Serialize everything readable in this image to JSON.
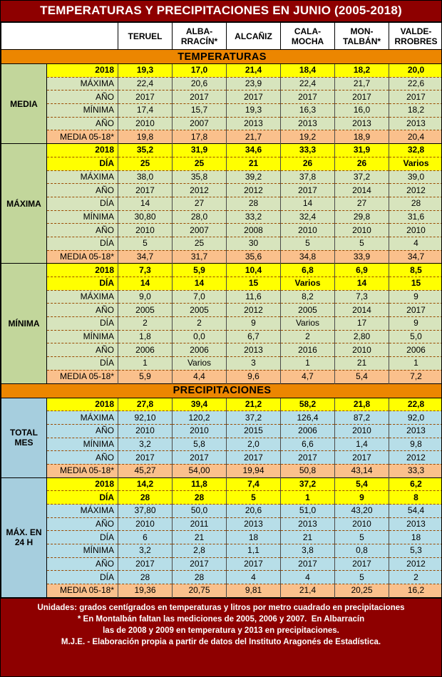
{
  "title": "TEMPERATURAS Y PRECIPITACIONES EN JUNIO (2005-2018)",
  "columns": [
    "TERUEL",
    "ALBA-\nRRACÍN*",
    "ALCAÑIZ",
    "CALA-\nMOCHA",
    "MON-\nTALBÁN*",
    "VALDE-\nRROBRES"
  ],
  "colors": {
    "maroon": "#8E0000",
    "orange": "#EC8600",
    "temp_row": "#D7E4BD",
    "temp_label": "#C2D69B",
    "precip_row": "#B7DEE8",
    "precip_label": "#A6CEDE",
    "year_row": "#FFFF00",
    "media_row": "#FAC08C",
    "hl_max": "#00C24D",
    "hl_min": "#F86E6E"
  },
  "sections": [
    {
      "header": "TEMPERATURAS",
      "kind": "temp",
      "groups": [
        {
          "label": "MEDIA",
          "rows": [
            {
              "label": "2018",
              "type": "year",
              "values": [
                "19,3",
                "17,0",
                "21,4",
                "18,4",
                "18,2",
                "20,0"
              ]
            },
            {
              "label": "MÁXIMA",
              "type": "normal",
              "values": [
                "22,4",
                "20,6",
                "23,9",
                "22,4",
                "21,7",
                "22,6"
              ],
              "hl": {
                "2": "max"
              }
            },
            {
              "label": "AÑO",
              "type": "normal",
              "values": [
                "2017",
                "2017",
                "2017",
                "2017",
                "2017",
                "2017"
              ]
            },
            {
              "label": "MÍNIMA",
              "type": "normal",
              "values": [
                "17,4",
                "15,7",
                "19,3",
                "16,3",
                "16,0",
                "18,2"
              ],
              "hl": {
                "1": "min"
              }
            },
            {
              "label": "AÑO",
              "type": "normal",
              "values": [
                "2010",
                "2007",
                "2013",
                "2013",
                "2013",
                "2013"
              ]
            },
            {
              "label": "MEDIA 05-18*",
              "type": "media",
              "values": [
                "19,8",
                "17,8",
                "21,7",
                "19,2",
                "18,9",
                "20,4"
              ]
            }
          ]
        },
        {
          "label": "MÁXIMA",
          "rows": [
            {
              "label": "2018",
              "type": "year",
              "values": [
                "35,2",
                "31,9",
                "34,6",
                "33,3",
                "31,9",
                "32,8"
              ]
            },
            {
              "label": "DÍA",
              "type": "year",
              "values": [
                "25",
                "25",
                "21",
                "26",
                "26",
                "Varios"
              ]
            },
            {
              "label": "MÁXIMA",
              "type": "normal",
              "values": [
                "38,0",
                "35,8",
                "39,2",
                "37,8",
                "37,2",
                "39,0"
              ],
              "hl": {
                "2": "max"
              }
            },
            {
              "label": "AÑO",
              "type": "normal",
              "values": [
                "2017",
                "2012",
                "2012",
                "2017",
                "2014",
                "2012"
              ]
            },
            {
              "label": "DÍA",
              "type": "normal",
              "values": [
                "14",
                "27",
                "28",
                "14",
                "27",
                "28"
              ]
            },
            {
              "label": "MÍNIMA",
              "type": "normal",
              "values": [
                "30,80",
                "28,0",
                "33,2",
                "32,4",
                "29,8",
                "31,6"
              ],
              "hl": {
                "1": "min"
              }
            },
            {
              "label": "AÑO",
              "type": "normal",
              "values": [
                "2010",
                "2007",
                "2008",
                "2010",
                "2010",
                "2010"
              ]
            },
            {
              "label": "DÍA",
              "type": "normal",
              "values": [
                "5",
                "25",
                "30",
                "5",
                "5",
                "4"
              ]
            },
            {
              "label": "MEDIA 05-18*",
              "type": "media",
              "values": [
                "34,7",
                "31,7",
                "35,6",
                "34,8",
                "33,9",
                "34,7"
              ]
            }
          ]
        },
        {
          "label": "MÍNIMA",
          "rows": [
            {
              "label": "2018",
              "type": "year",
              "values": [
                "7,3",
                "5,9",
                "10,4",
                "6,8",
                "6,9",
                "8,5"
              ]
            },
            {
              "label": "DÍA",
              "type": "year",
              "values": [
                "14",
                "14",
                "15",
                "Varios",
                "14",
                "15"
              ]
            },
            {
              "label": "MÁXIMA",
              "type": "normal",
              "values": [
                "9,0",
                "7,0",
                "11,6",
                "8,2",
                "7,3",
                "9"
              ],
              "hl": {
                "2": "max"
              }
            },
            {
              "label": "AÑO",
              "type": "normal",
              "values": [
                "2005",
                "2005",
                "2012",
                "2005",
                "2014",
                "2017"
              ]
            },
            {
              "label": "DÍA",
              "type": "normal",
              "values": [
                "2",
                "2",
                "9",
                "Varios",
                "17",
                "9"
              ]
            },
            {
              "label": "MÍNIMA",
              "type": "normal",
              "values": [
                "1,8",
                "0,0",
                "6,7",
                "2",
                "2,80",
                "5,0"
              ],
              "hl": {
                "1": "min"
              }
            },
            {
              "label": "AÑO",
              "type": "normal",
              "values": [
                "2006",
                "2006",
                "2013",
                "2016",
                "2010",
                "2006"
              ]
            },
            {
              "label": "DÍA",
              "type": "normal",
              "values": [
                "1",
                "Varios",
                "3",
                "1",
                "21",
                "1"
              ]
            },
            {
              "label": "MEDIA 05-18*",
              "type": "media",
              "values": [
                "5,9",
                "4,4",
                "9,6",
                "4,7",
                "5,4",
                "7,2"
              ]
            }
          ]
        }
      ]
    },
    {
      "header": "PRECIPITACIONES",
      "kind": "precip",
      "groups": [
        {
          "label": "TOTAL\nMES",
          "rows": [
            {
              "label": "2018",
              "type": "year",
              "values": [
                "27,8",
                "39,4",
                "21,2",
                "58,2",
                "21,8",
                "22,8"
              ]
            },
            {
              "label": "MÁXIMA",
              "type": "normal",
              "values": [
                "92,10",
                "120,2",
                "37,2",
                "126,4",
                "87,2",
                "92,0"
              ],
              "hl": {
                "3": "max"
              }
            },
            {
              "label": "AÑO",
              "type": "normal",
              "values": [
                "2010",
                "2010",
                "2015",
                "2006",
                "2010",
                "2013"
              ]
            },
            {
              "label": "MÍNIMA",
              "type": "normal",
              "values": [
                "3,2",
                "5,8",
                "2,0",
                "6,6",
                "1,4",
                "9,8"
              ],
              "hl": {
                "4": "min"
              }
            },
            {
              "label": "AÑO",
              "type": "normal",
              "values": [
                "2017",
                "2017",
                "2017",
                "2017",
                "2017",
                "2012"
              ]
            },
            {
              "label": "MEDIA 05-18*",
              "type": "media",
              "values": [
                "45,27",
                "54,00",
                "19,94",
                "50,8",
                "43,14",
                "33,3"
              ]
            }
          ]
        },
        {
          "label": "MÁX. EN\n24 H",
          "rows": [
            {
              "label": "2018",
              "type": "year",
              "values": [
                "14,2",
                "11,8",
                "7,4",
                "37,2",
                "5,4",
                "6,2"
              ]
            },
            {
              "label": "DÍA",
              "type": "year",
              "values": [
                "28",
                "28",
                "5",
                "1",
                "9",
                "8"
              ]
            },
            {
              "label": "MÁXIMA",
              "type": "normal",
              "values": [
                "37,80",
                "50,0",
                "20,6",
                "51,0",
                "43,20",
                "54,4"
              ],
              "hl": {
                "5": "max"
              }
            },
            {
              "label": "AÑO",
              "type": "normal",
              "values": [
                "2010",
                "2011",
                "2013",
                "2013",
                "2010",
                "2013"
              ]
            },
            {
              "label": "DÍA",
              "type": "normal",
              "values": [
                "6",
                "21",
                "18",
                "21",
                "5",
                "18"
              ]
            },
            {
              "label": "MÍNIMA",
              "type": "normal",
              "values": [
                "3,2",
                "2,8",
                "1,1",
                "3,8",
                "0,8",
                "5,3"
              ],
              "hl": {
                "4": "min"
              }
            },
            {
              "label": "AÑO",
              "type": "normal",
              "values": [
                "2017",
                "2017",
                "2017",
                "2017",
                "2017",
                "2012"
              ]
            },
            {
              "label": "DÍA",
              "type": "normal",
              "values": [
                "28",
                "28",
                "4",
                "4",
                "5",
                "2"
              ]
            },
            {
              "label": "MEDIA 05-18*",
              "type": "media",
              "values": [
                "19,36",
                "20,75",
                "9,81",
                "21,4",
                "20,25",
                "16,2"
              ]
            }
          ]
        }
      ]
    }
  ],
  "footer": {
    "line1": "Unidades: grados centígrados en temperaturas y litros por metro cuadrado en precipitaciones",
    "line2": "* En Montalbán faltan las mediciones de 2005, 2006 y 2007.  En Albarracín",
    "line3": "las de 2008 y 2009 en temperatura y 2013 en precipitaciones.",
    "line4": "M.J.E. - Elaboración propia a partir de datos del Instituto Aragonés de Estadística."
  }
}
